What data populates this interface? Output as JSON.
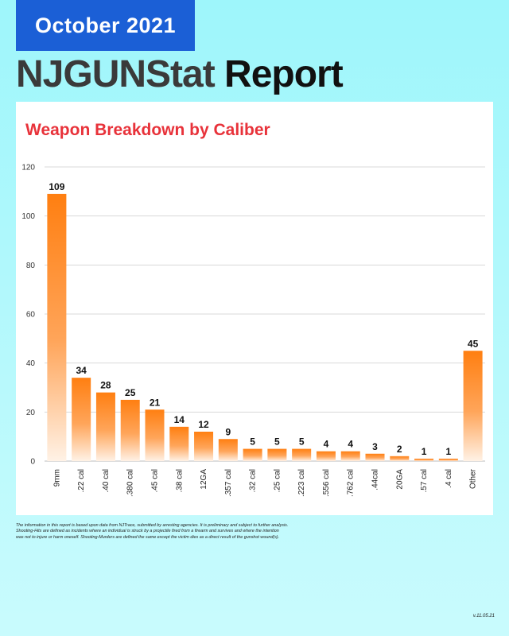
{
  "header": {
    "date": "October 2021",
    "title_part1": "NJGUNStat",
    "title_part2": " Report"
  },
  "chart_data": {
    "type": "bar",
    "title": "Weapon Breakdown by Caliber",
    "categories": [
      "9mm",
      ".22 cal",
      ".40 cal",
      ".380 cal",
      ".45 cal",
      ".38 cal",
      "12GA",
      ".357 cal",
      ".32 cal",
      ".25 cal",
      ".223 cal",
      ".556 cal",
      ".762 cal",
      ".44cal",
      "20GA",
      ".57 cal",
      ".4 cal",
      "Other"
    ],
    "values": [
      109,
      34,
      28,
      25,
      21,
      14,
      12,
      9,
      5,
      5,
      5,
      4,
      4,
      3,
      2,
      1,
      1,
      45
    ],
    "ylim": [
      0,
      120
    ],
    "yticks": [
      0,
      20,
      40,
      60,
      80,
      100,
      120
    ],
    "grid": true,
    "bar_color": "#ff7f11",
    "title_color": "#e8323a"
  },
  "footer": {
    "note_line1": "The information in this report is based upon data from NJTrace, submitted by arresting agencies. It is preliminary and subject to further analysis.",
    "note_line2": "Shooting-Hits are defined as incidents where an individual is struck by a projectile fired from a firearm and survives and where the intention",
    "note_line3": "was not to injure or harm oneself. Shooting-Murders are defined the same except the victim dies as a direct result of the gunshot wound(s).",
    "version": "v.11.05.21"
  }
}
